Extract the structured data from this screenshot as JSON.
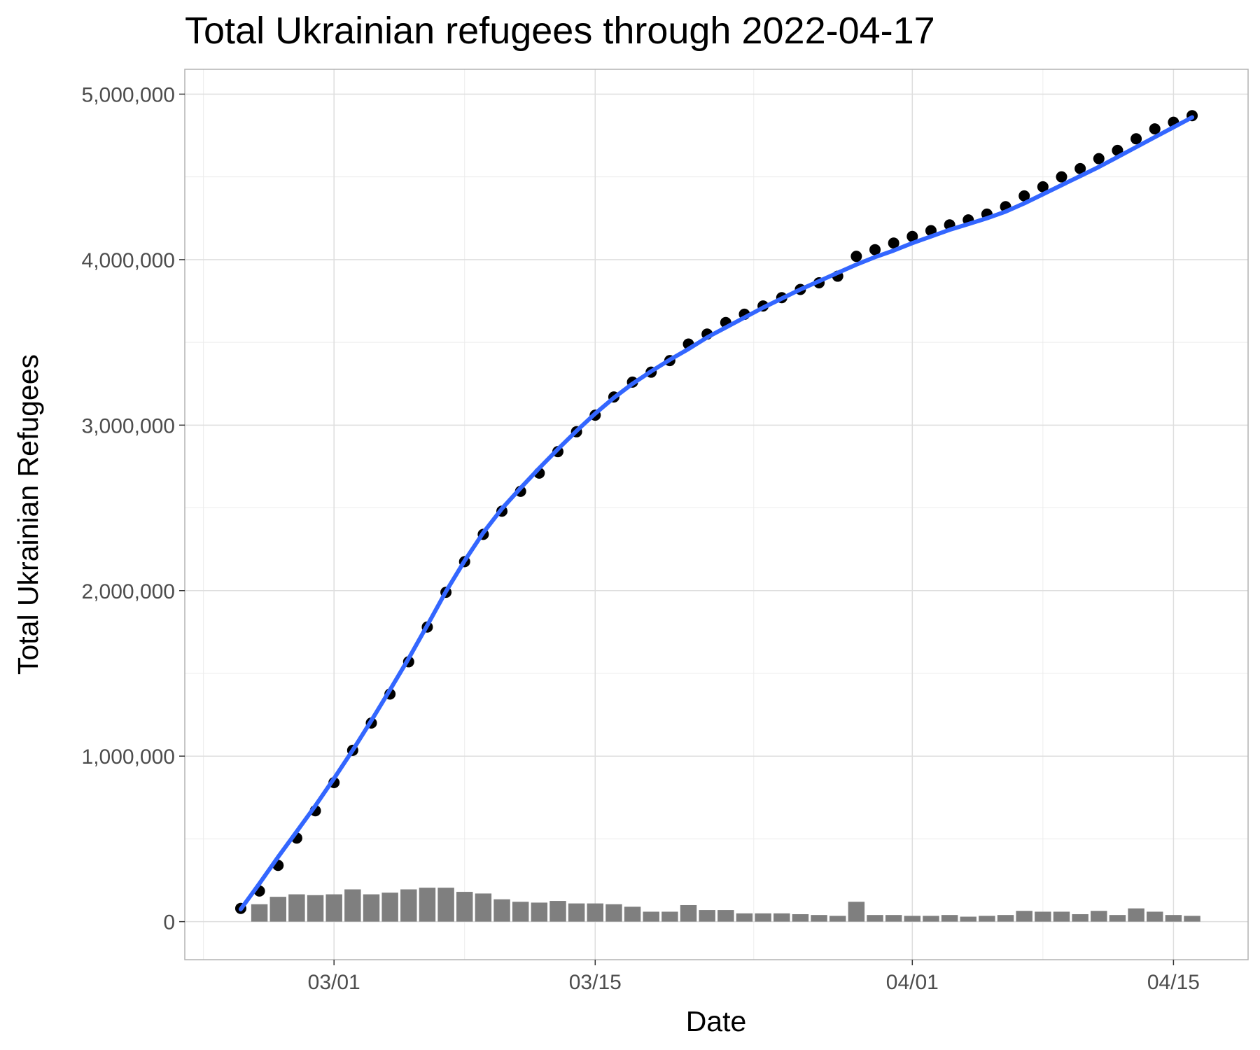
{
  "chart_data": {
    "type": "line",
    "title": "Total Ukrainian refugees through 2022-04-17",
    "xlabel": "Date",
    "ylabel": "Total Ukrainian Refugees",
    "x_ticks": [
      "03/01",
      "03/15",
      "04/01",
      "04/15"
    ],
    "y_ticks": [
      "0",
      "1,000,000",
      "2,000,000",
      "3,000,000",
      "4,000,000",
      "5,000,000"
    ],
    "xlim": [
      "2022-02-21",
      "2022-04-19"
    ],
    "ylim": [
      -230000,
      5150000
    ],
    "grid": true,
    "legend": "none",
    "colors": {
      "points": "#000000",
      "trend": "#3366ff",
      "bars": "#7f7f7f",
      "panel_border": "#b3b3b3",
      "grid_major": "#dedede",
      "grid_minor": "#ececec"
    },
    "series": [
      {
        "type": "scatter",
        "x": [
          "2022-02-24",
          "2022-02-25",
          "2022-02-26",
          "2022-02-27",
          "2022-02-28",
          "2022-03-01",
          "2022-03-02",
          "2022-03-03",
          "2022-03-04",
          "2022-03-05",
          "2022-03-06",
          "2022-03-07",
          "2022-03-08",
          "2022-03-09",
          "2022-03-10",
          "2022-03-11",
          "2022-03-12",
          "2022-03-13",
          "2022-03-14",
          "2022-03-15",
          "2022-03-16",
          "2022-03-17",
          "2022-03-18",
          "2022-03-19",
          "2022-03-20",
          "2022-03-21",
          "2022-03-22",
          "2022-03-23",
          "2022-03-24",
          "2022-03-25",
          "2022-03-26",
          "2022-03-27",
          "2022-03-28",
          "2022-03-29",
          "2022-03-30",
          "2022-03-31",
          "2022-04-01",
          "2022-04-02",
          "2022-04-03",
          "2022-04-04",
          "2022-04-05",
          "2022-04-06",
          "2022-04-07",
          "2022-04-08",
          "2022-04-09",
          "2022-04-10",
          "2022-04-11",
          "2022-04-12",
          "2022-04-13",
          "2022-04-14",
          "2022-04-15",
          "2022-04-16"
        ],
        "values": [
          80000,
          185000,
          340000,
          505000,
          670000,
          840000,
          1035000,
          1200000,
          1375000,
          1570000,
          1780000,
          1990000,
          2175000,
          2340000,
          2480000,
          2600000,
          2710000,
          2840000,
          2960000,
          3060000,
          3170000,
          3260000,
          3320000,
          3390000,
          3490000,
          3550000,
          3620000,
          3670000,
          3720000,
          3770000,
          3820000,
          3860000,
          3900000,
          4020000,
          4060000,
          4100000,
          4140000,
          4175000,
          4210000,
          4240000,
          4275000,
          4320000,
          4385000,
          4440000,
          4500000,
          4550000,
          4610000,
          4660000,
          4730000,
          4790000,
          4830000,
          4870000
        ]
      },
      {
        "type": "line",
        "name": "",
        "x": [
          "2022-02-24",
          "2022-02-25",
          "2022-02-26",
          "2022-02-27",
          "2022-02-28",
          "2022-03-01",
          "2022-03-02",
          "2022-03-03",
          "2022-03-04",
          "2022-03-05",
          "2022-03-06",
          "2022-03-07",
          "2022-03-08",
          "2022-03-09",
          "2022-03-10",
          "2022-03-11",
          "2022-03-12",
          "2022-03-13",
          "2022-03-14",
          "2022-03-15",
          "2022-03-16",
          "2022-03-17",
          "2022-03-18",
          "2022-03-19",
          "2022-03-20",
          "2022-03-21",
          "2022-03-22",
          "2022-03-23",
          "2022-03-24",
          "2022-03-25",
          "2022-03-26",
          "2022-03-27",
          "2022-03-28",
          "2022-03-29",
          "2022-03-30",
          "2022-03-31",
          "2022-04-01",
          "2022-04-02",
          "2022-04-03",
          "2022-04-04",
          "2022-04-05",
          "2022-04-06",
          "2022-04-07",
          "2022-04-08",
          "2022-04-09",
          "2022-04-10",
          "2022-04-11",
          "2022-04-12",
          "2022-04-13",
          "2022-04-14",
          "2022-04-15",
          "2022-04-16"
        ],
        "values": [
          75000,
          230000,
          390000,
          545000,
          700000,
          865000,
          1035000,
          1215000,
          1400000,
          1590000,
          1790000,
          1995000,
          2180000,
          2350000,
          2495000,
          2620000,
          2740000,
          2855000,
          2965000,
          3070000,
          3165000,
          3250000,
          3325000,
          3395000,
          3460000,
          3530000,
          3590000,
          3650000,
          3710000,
          3765000,
          3820000,
          3870000,
          3920000,
          3970000,
          4015000,
          4055000,
          4100000,
          4140000,
          4180000,
          4215000,
          4250000,
          4290000,
          4340000,
          4395000,
          4450000,
          4505000,
          4560000,
          4620000,
          4680000,
          4740000,
          4800000,
          4860000
        ]
      },
      {
        "type": "bar",
        "x": [
          "2022-02-25",
          "2022-02-26",
          "2022-02-27",
          "2022-02-28",
          "2022-03-01",
          "2022-03-02",
          "2022-03-03",
          "2022-03-04",
          "2022-03-05",
          "2022-03-06",
          "2022-03-07",
          "2022-03-08",
          "2022-03-09",
          "2022-03-10",
          "2022-03-11",
          "2022-03-12",
          "2022-03-13",
          "2022-03-14",
          "2022-03-15",
          "2022-03-16",
          "2022-03-17",
          "2022-03-18",
          "2022-03-19",
          "2022-03-20",
          "2022-03-21",
          "2022-03-22",
          "2022-03-23",
          "2022-03-24",
          "2022-03-25",
          "2022-03-26",
          "2022-03-27",
          "2022-03-28",
          "2022-03-29",
          "2022-03-30",
          "2022-03-31",
          "2022-04-01",
          "2022-04-02",
          "2022-04-03",
          "2022-04-04",
          "2022-04-05",
          "2022-04-06",
          "2022-04-07",
          "2022-04-08",
          "2022-04-09",
          "2022-04-10",
          "2022-04-11",
          "2022-04-12",
          "2022-04-13",
          "2022-04-14",
          "2022-04-15",
          "2022-04-16"
        ],
        "values": [
          105000,
          150000,
          165000,
          160000,
          165000,
          195000,
          165000,
          175000,
          195000,
          205000,
          205000,
          180000,
          170000,
          135000,
          120000,
          115000,
          125000,
          110000,
          110000,
          105000,
          90000,
          60000,
          60000,
          100000,
          70000,
          70000,
          50000,
          50000,
          50000,
          45000,
          40000,
          35000,
          120000,
          40000,
          40000,
          35000,
          35000,
          40000,
          30000,
          35000,
          40000,
          65000,
          60000,
          60000,
          45000,
          65000,
          40000,
          80000,
          60000,
          40000,
          35000
        ]
      }
    ]
  }
}
